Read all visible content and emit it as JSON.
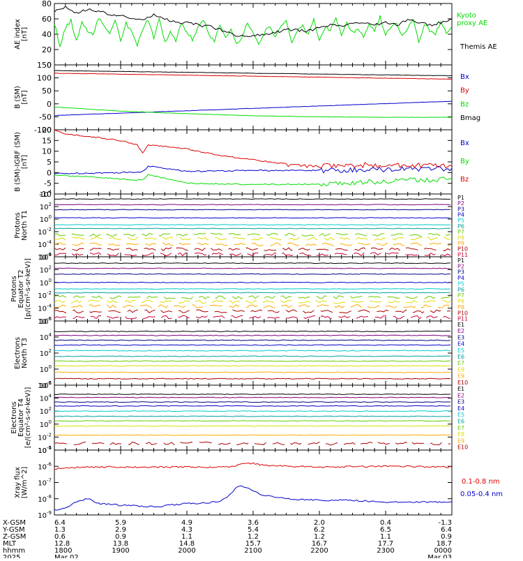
{
  "colors": {
    "black": "#000000",
    "green": "#00dd00",
    "red": "#dd0000",
    "blue": "#0000cc",
    "navy": "#000080",
    "purple": "#7f007f",
    "cyan": "#00cccc",
    "teal": "#00a0a0",
    "lime": "#66cc00",
    "yellow": "#dddd00",
    "orange": "#ffaa00",
    "darkorange": "#ff7700",
    "darkred": "#aa0000",
    "crimson": "#cc0033"
  },
  "chart_data": [
    {
      "type": "line",
      "id": "ae",
      "ylabel": "AE index [nT]",
      "ylim": [
        0,
        80
      ],
      "yticks": [
        "0",
        "20",
        "40",
        "60",
        "80"
      ],
      "legend": [
        "Kyoto proxy AE",
        "Themis AE"
      ],
      "series": [
        {
          "name": "Kyoto proxy AE",
          "color": "green",
          "x": [
            1800,
            1805,
            1810,
            1815,
            1820,
            1825,
            1830,
            1835,
            1840,
            1845,
            1850,
            1855,
            1900,
            1905,
            1910,
            1915,
            1920,
            1925,
            1930,
            1935,
            1940,
            1945,
            1950,
            1955,
            2000,
            2005,
            2010,
            2015,
            2020,
            2025,
            2030,
            2035,
            2040,
            2045,
            2050,
            2055,
            2100,
            2105,
            2110,
            2115,
            2120,
            2125,
            2130,
            2135,
            2140,
            2145,
            2150,
            2155,
            2200,
            2205,
            2210,
            2215,
            2220,
            2225,
            2230,
            2235,
            2240,
            2245,
            2250,
            2255,
            2300,
            2305,
            2310,
            2315,
            2320,
            2325,
            2330,
            2335,
            2340,
            2345,
            2350,
            2355,
            2400
          ],
          "y": [
            55,
            25,
            48,
            58,
            32,
            55,
            45,
            38,
            62,
            50,
            40,
            58,
            30,
            55,
            42,
            25,
            48,
            58,
            35,
            60,
            28,
            45,
            30,
            55,
            44,
            32,
            50,
            58,
            40,
            30,
            52,
            38,
            45,
            30,
            35,
            55,
            40,
            28,
            42,
            50,
            35,
            48,
            58,
            30,
            45,
            52,
            40,
            58,
            32,
            50,
            45,
            60,
            38,
            55,
            42,
            48,
            35,
            52,
            44,
            62,
            40,
            50,
            55,
            38,
            48,
            60,
            30,
            52,
            45,
            38,
            58,
            42,
            50
          ]
        },
        {
          "name": "Themis AE",
          "color": "black",
          "x": [
            1800,
            1810,
            1820,
            1830,
            1840,
            1850,
            1900,
            1910,
            1920,
            1930,
            1940,
            1950,
            2000,
            2010,
            2020,
            2030,
            2040,
            2050,
            2100,
            2110,
            2120,
            2130,
            2140,
            2150,
            2200,
            2210,
            2220,
            2230,
            2240,
            2250,
            2300,
            2310,
            2320,
            2330,
            2340,
            2350,
            2400
          ],
          "y": [
            70,
            75,
            68,
            72,
            70,
            66,
            64,
            60,
            58,
            66,
            60,
            55,
            55,
            52,
            50,
            46,
            40,
            38,
            38,
            40,
            42,
            46,
            45,
            44,
            48,
            52,
            50,
            54,
            55,
            52,
            55,
            52,
            58,
            56,
            52,
            55,
            60
          ]
        }
      ]
    },
    {
      "type": "line",
      "id": "bsm",
      "ylabel": "B (SM) [nT]",
      "ylim": [
        -100,
        150
      ],
      "yticks": [
        "-100",
        "-50",
        "0",
        "50",
        "100",
        "150"
      ],
      "legend": [
        "Bx",
        "By",
        "Bz",
        "Bmag"
      ],
      "series": [
        {
          "name": "Bx",
          "color": "blue",
          "x": [
            1800,
            2400
          ],
          "y": [
            -45,
            10
          ]
        },
        {
          "name": "By",
          "color": "red",
          "x": [
            1800,
            2400
          ],
          "y": [
            118,
            95
          ]
        },
        {
          "name": "Bz",
          "color": "green",
          "x": [
            1800,
            1900,
            2000,
            2100,
            2200,
            2300,
            2400
          ],
          "y": [
            -12,
            -28,
            -38,
            -46,
            -50,
            -52,
            -52
          ]
        },
        {
          "name": "Bmag",
          "color": "black",
          "x": [
            1800,
            2400
          ],
          "y": [
            128,
            108
          ]
        }
      ]
    },
    {
      "type": "line",
      "id": "bigrf",
      "ylabel": "B (SM)-IGRF (SM) [nT]",
      "ylim": [
        -10,
        20
      ],
      "yticks": [
        "-10",
        "-5",
        "0",
        "5",
        "10",
        "15",
        "20"
      ],
      "legend": [
        "Bx",
        "By",
        "Bz"
      ],
      "series": [
        {
          "name": "Bx",
          "color": "blue",
          "x": [
            1800,
            1900,
            1920,
            1925,
            2000,
            2100,
            2200,
            2300,
            2400
          ],
          "y": [
            -0.5,
            0,
            0.5,
            3,
            0.5,
            1,
            1,
            1.5,
            2
          ]
        },
        {
          "name": "By",
          "color": "green",
          "x": [
            1800,
            1900,
            1920,
            1925,
            2000,
            2100,
            2200,
            2300,
            2400
          ],
          "y": [
            -1,
            -3,
            -3.5,
            -1,
            -5,
            -5.5,
            -5.5,
            -4,
            -3
          ]
        },
        {
          "name": "Bz",
          "color": "red",
          "x": [
            1800,
            1810,
            1830,
            1900,
            1915,
            1920,
            1925,
            2000,
            2030,
            2100,
            2130,
            2200,
            2230,
            2300,
            2400
          ],
          "y": [
            20,
            18,
            17,
            15,
            13,
            9,
            13,
            11,
            8,
            6,
            4,
            3,
            3.5,
            3.5,
            3
          ]
        }
      ]
    },
    {
      "type": "line",
      "id": "pn1",
      "ylabel": "Protons North T1",
      "ylog": true,
      "ylim": [
        -6,
        4
      ],
      "yticks": [
        "10-6",
        "10-4",
        "10-2",
        "100",
        "102",
        "104"
      ],
      "legend": [
        "P1",
        "P2",
        "P3",
        "P4",
        "P5",
        "P6",
        "P7",
        "P8",
        "P9",
        "P10",
        "P11"
      ],
      "levels": [
        3.2,
        2.3,
        1.5,
        0.2,
        -0.9,
        -1.5,
        -2.5,
        -3.1,
        -4.0,
        -4.8,
        -5.6
      ],
      "colors": [
        "black",
        "purple",
        "navy",
        "blue",
        "cyan",
        "teal",
        "lime",
        "yellow",
        "orange",
        "darkred",
        "crimson"
      ]
    },
    {
      "type": "line",
      "id": "pe2",
      "ylabel": "Protons Equator T2 [p/(cm²-s-sr-keV)]",
      "ylog": true,
      "ylim": [
        -6,
        4
      ],
      "yticks": [
        "10-6",
        "10-4",
        "10-2",
        "100",
        "102",
        "104"
      ],
      "legend": [
        "P1",
        "P2",
        "P3",
        "P4",
        "P5",
        "P6",
        "P7",
        "P8",
        "P9",
        "P10",
        "P11"
      ],
      "levels": [
        3.0,
        2.2,
        1.3,
        0.0,
        -1.0,
        -1.6,
        -2.3,
        -3.0,
        -3.7,
        -4.5,
        -5.4
      ],
      "colors": [
        "black",
        "purple",
        "navy",
        "blue",
        "cyan",
        "teal",
        "lime",
        "yellow",
        "orange",
        "darkred",
        "crimson"
      ]
    },
    {
      "type": "line",
      "id": "en3",
      "ylabel": "Electrons North T3",
      "ylog": true,
      "ylim": [
        -2,
        6
      ],
      "yticks": [
        "10-2",
        "100",
        "102",
        "104",
        "106"
      ],
      "legend": [
        "E1",
        "E2",
        "E3",
        "E4",
        "E5",
        "E6",
        "E7",
        "E8",
        "E9",
        "E10"
      ],
      "levels": [
        4.7,
        4.2,
        3.6,
        3.0,
        2.3,
        1.6,
        1.0,
        0.4,
        -0.4,
        -1.2
      ],
      "colors": [
        "black",
        "purple",
        "navy",
        "blue",
        "cyan",
        "teal",
        "lime",
        "yellow",
        "orange",
        "darkred"
      ]
    },
    {
      "type": "line",
      "id": "ee4",
      "ylabel": "Electrons Equator T4 [e/(cm²-s-sr-keV)]",
      "ylog": true,
      "ylim": [
        -4,
        6
      ],
      "yticks": [
        "10-4",
        "10-2",
        "100",
        "102",
        "104",
        "106"
      ],
      "legend": [
        "E1",
        "E2",
        "E3",
        "E4",
        "E5",
        "E6",
        "E7",
        "E8",
        "E9",
        "E10"
      ],
      "levels": [
        4.6,
        4.1,
        3.4,
        2.8,
        2.0,
        1.2,
        0.5,
        -0.3,
        -1.7,
        -3.0
      ],
      "colors": [
        "black",
        "purple",
        "navy",
        "blue",
        "cyan",
        "teal",
        "lime",
        "yellow",
        "orange",
        "darkred"
      ]
    },
    {
      "type": "line",
      "id": "xray",
      "ylabel": "Xray flux [W/m^2]",
      "ylog": true,
      "ylim": [
        -9,
        -5
      ],
      "yticks": [
        "10-9",
        "10-8",
        "10-7",
        "10-6",
        "10-5"
      ],
      "legend": [
        "0.1-0.8 nm",
        "0.05-0.4 nm"
      ],
      "series": [
        {
          "name": "0.1-0.8 nm",
          "color": "red",
          "x": [
            1800,
            1830,
            1900,
            2000,
            2040,
            2050,
            2100,
            2110,
            2130,
            2200,
            2300,
            2400
          ],
          "y": [
            -6.15,
            -6.05,
            -6.05,
            -6.05,
            -6.05,
            -5.85,
            -5.82,
            -5.95,
            -6.0,
            -6.05,
            -6.0,
            -6.05
          ]
        },
        {
          "name": "0.05-0.4 nm",
          "color": "blue",
          "x": [
            1800,
            1810,
            1820,
            1830,
            1840,
            1900,
            1930,
            2000,
            2030,
            2040,
            2045,
            2050,
            2100,
            2110,
            2130,
            2200,
            2230,
            2300,
            2330,
            2400
          ],
          "y": [
            -8.7,
            -8.6,
            -8.2,
            -8.0,
            -8.3,
            -8.4,
            -8.5,
            -8.3,
            -8.2,
            -7.7,
            -7.3,
            -7.2,
            -7.5,
            -7.8,
            -8.0,
            -8.1,
            -8.1,
            -8.2,
            -8.2,
            -8.2
          ]
        }
      ]
    }
  ],
  "axis_table": {
    "rows": [
      {
        "label": "X-GSM",
        "values": [
          "6.4",
          "5.9",
          "4.9",
          "3.6",
          "2.0",
          "0.4",
          "-1.3"
        ]
      },
      {
        "label": "Y-GSM",
        "values": [
          "1.3",
          "2.9",
          "4.3",
          "5.4",
          "6.2",
          "6.5",
          "6.4"
        ]
      },
      {
        "label": "Z-GSM",
        "values": [
          "0.6",
          "0.9",
          "1.1",
          "1.2",
          "1.2",
          "1.1",
          "0.9"
        ]
      },
      {
        "label": "MLT",
        "values": [
          "12.8",
          "13.8",
          "14.8",
          "15.7",
          "16.7",
          "17.7",
          "18.7"
        ]
      },
      {
        "label": "hhmm",
        "values": [
          "1800",
          "1900",
          "2000",
          "2100",
          "2200",
          "2300",
          "0000"
        ]
      },
      {
        "label": "2025",
        "values": [
          "Mar 02",
          "",
          "",
          "",
          "",
          "",
          "Mar 03"
        ]
      }
    ]
  }
}
